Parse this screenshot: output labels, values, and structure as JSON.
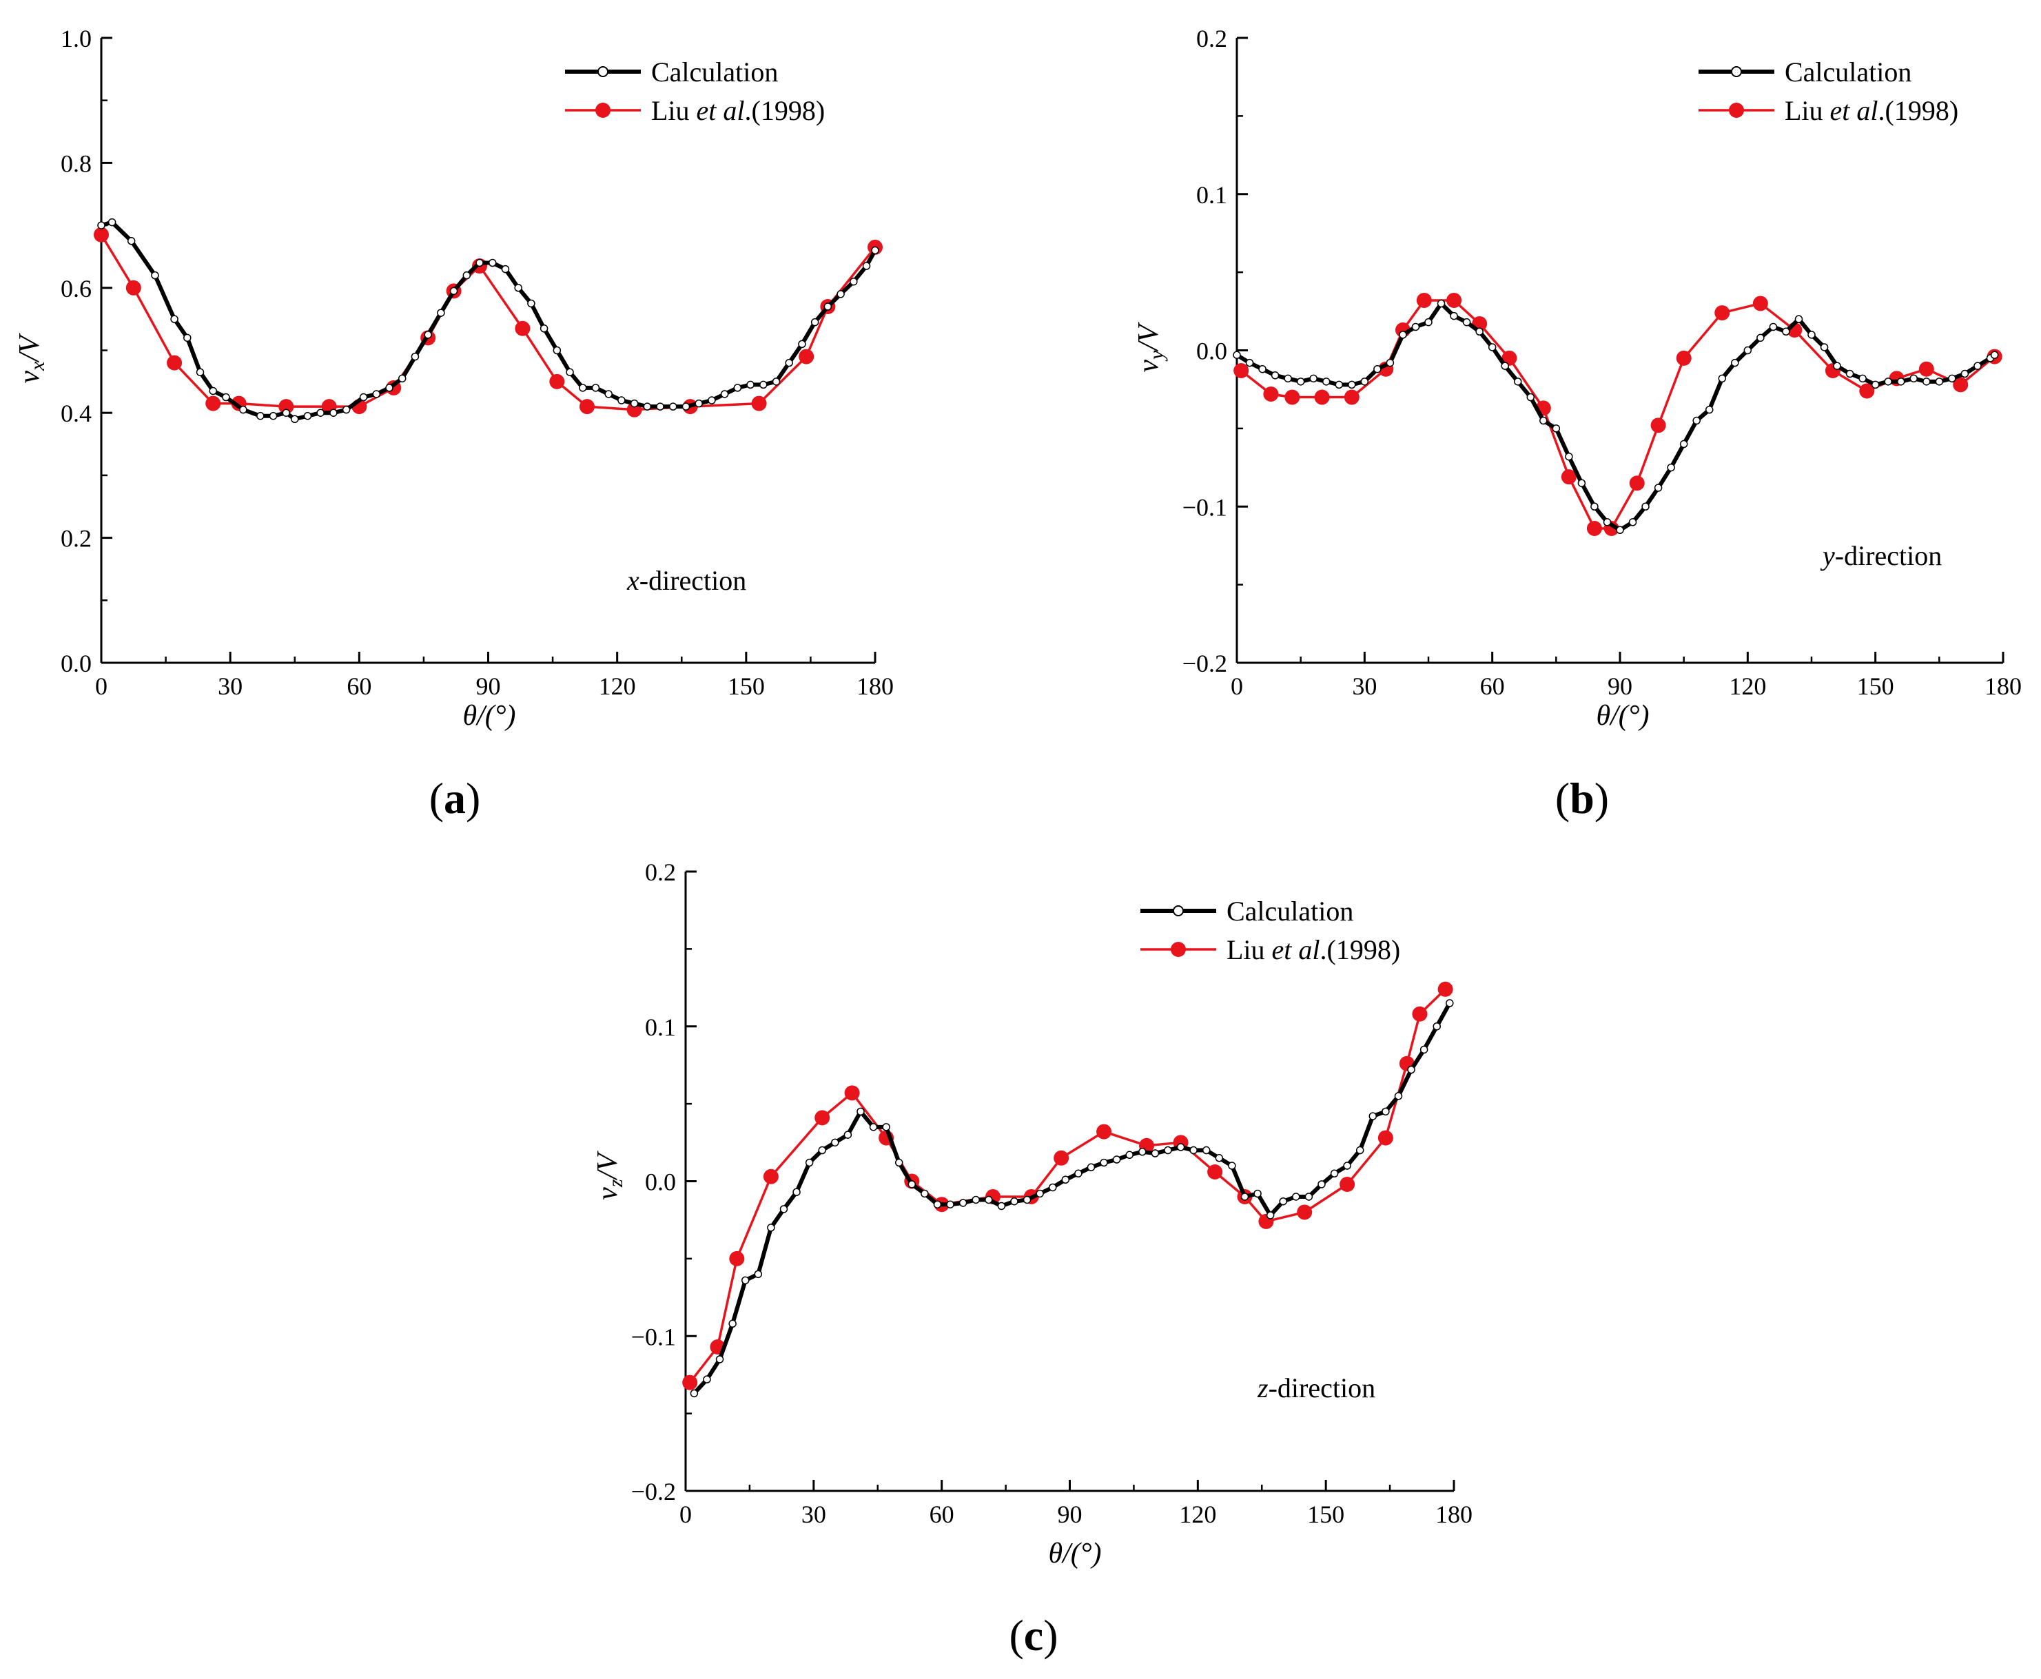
{
  "figure": {
    "panels": [
      {
        "id": "a",
        "label": "a",
        "direction_italic": "x",
        "direction_rest": "-direction",
        "ylabel_var": "v",
        "ylabel_sub": "x",
        "ylabel_rest": "/V"
      },
      {
        "id": "b",
        "label": "b",
        "direction_italic": "y",
        "direction_rest": "-direction",
        "ylabel_var": "v",
        "ylabel_sub": "y",
        "ylabel_rest": "/V"
      },
      {
        "id": "c",
        "label": "c",
        "direction_italic": "z",
        "direction_rest": "-direction",
        "ylabel_var": "v",
        "ylabel_sub": "z",
        "ylabel_rest": "/V"
      }
    ],
    "xlabel": "θ/(°)",
    "legend": {
      "calculation": "Calculation",
      "liu_prefix": "Liu ",
      "liu_italic": "et al",
      "liu_suffix": ".(1998)"
    }
  },
  "colors": {
    "calculation_line": "#000000",
    "calculation_marker_fill": "#ffffff",
    "liu_line": "#e8141c",
    "liu_marker": "#e8141c",
    "axis": "#000000"
  },
  "chart_data": [
    {
      "type": "line",
      "title": "(a)",
      "xlabel": "θ/(°)",
      "ylabel": "v_x/V",
      "xlim": [
        0,
        180
      ],
      "ylim": [
        0.0,
        1.0
      ],
      "xticks": [
        0,
        30,
        60,
        90,
        120,
        150,
        180
      ],
      "yticks": [
        0.0,
        0.2,
        0.4,
        0.6,
        0.8,
        1.0
      ],
      "ytick_labels": [
        "0.0",
        "0.2",
        "0.4",
        "0.6",
        "0.8",
        "1.0"
      ],
      "annotation": "x-direction",
      "legend_position": "top-right",
      "series": [
        {
          "name": "Calculation",
          "x": [
            0,
            2.5,
            7,
            12.5,
            17,
            20,
            23,
            26,
            29,
            33,
            37,
            40,
            43,
            45,
            48,
            51,
            54,
            57,
            61,
            64,
            67,
            70,
            73,
            76,
            79,
            82,
            85,
            88,
            91,
            94,
            97,
            100,
            103,
            106,
            109,
            112,
            115,
            118,
            121,
            124,
            127,
            130,
            133,
            136,
            139,
            142,
            145,
            148,
            151,
            154,
            157,
            160,
            163,
            166,
            169,
            172,
            175,
            178,
            180
          ],
          "y": [
            0.7,
            0.705,
            0.675,
            0.62,
            0.55,
            0.52,
            0.465,
            0.435,
            0.425,
            0.405,
            0.395,
            0.395,
            0.4,
            0.39,
            0.395,
            0.4,
            0.4,
            0.405,
            0.425,
            0.43,
            0.44,
            0.455,
            0.49,
            0.525,
            0.56,
            0.595,
            0.62,
            0.64,
            0.64,
            0.63,
            0.6,
            0.575,
            0.535,
            0.5,
            0.465,
            0.44,
            0.44,
            0.43,
            0.42,
            0.415,
            0.41,
            0.41,
            0.41,
            0.41,
            0.415,
            0.42,
            0.43,
            0.44,
            0.445,
            0.445,
            0.45,
            0.48,
            0.51,
            0.545,
            0.57,
            0.59,
            0.61,
            0.635,
            0.66
          ]
        },
        {
          "name": "Liu et al.(1998)",
          "x": [
            0,
            7.5,
            17,
            26,
            32,
            43,
            53,
            60,
            68,
            76,
            82,
            88,
            98,
            106,
            113,
            124,
            137,
            153,
            164,
            169,
            180
          ],
          "y": [
            0.685,
            0.6,
            0.48,
            0.415,
            0.415,
            0.41,
            0.41,
            0.41,
            0.44,
            0.52,
            0.595,
            0.635,
            0.535,
            0.45,
            0.41,
            0.405,
            0.41,
            0.415,
            0.49,
            0.57,
            0.665
          ]
        }
      ]
    },
    {
      "type": "line",
      "title": "(b)",
      "xlabel": "θ/(°)",
      "ylabel": "v_y/V",
      "xlim": [
        0,
        180
      ],
      "ylim": [
        -0.2,
        0.2
      ],
      "xticks": [
        0,
        30,
        60,
        90,
        120,
        150,
        180
      ],
      "yticks": [
        -0.2,
        -0.1,
        0.0,
        0.1,
        0.2
      ],
      "ytick_labels": [
        "−0.2",
        "−0.1",
        "0.0",
        "0.1",
        "0.2"
      ],
      "annotation": "y-direction",
      "legend_position": "top-right",
      "series": [
        {
          "name": "Calculation",
          "x": [
            0,
            3,
            6,
            9,
            12,
            15,
            18,
            21,
            24,
            27,
            30,
            33,
            36,
            39,
            42,
            45,
            48,
            51,
            54,
            57,
            60,
            63,
            66,
            69,
            72,
            75,
            78,
            81,
            84,
            87,
            90,
            93,
            96,
            99,
            102,
            105,
            108,
            111,
            114,
            117,
            120,
            123,
            126,
            129,
            132,
            135,
            138,
            141,
            144,
            147,
            150,
            153,
            156,
            159,
            162,
            165,
            168,
            171,
            174,
            177,
            178
          ],
          "y": [
            -0.003,
            -0.008,
            -0.012,
            -0.016,
            -0.018,
            -0.02,
            -0.018,
            -0.02,
            -0.022,
            -0.022,
            -0.02,
            -0.012,
            -0.008,
            0.01,
            0.015,
            0.018,
            0.03,
            0.022,
            0.018,
            0.012,
            0.002,
            -0.01,
            -0.02,
            -0.03,
            -0.045,
            -0.05,
            -0.068,
            -0.085,
            -0.1,
            -0.11,
            -0.115,
            -0.11,
            -0.1,
            -0.088,
            -0.075,
            -0.06,
            -0.045,
            -0.038,
            -0.018,
            -0.008,
            0.0,
            0.008,
            0.015,
            0.012,
            0.02,
            0.01,
            0.002,
            -0.01,
            -0.015,
            -0.018,
            -0.022,
            -0.02,
            -0.02,
            -0.018,
            -0.02,
            -0.02,
            -0.018,
            -0.015,
            -0.01,
            -0.005,
            -0.003
          ]
        },
        {
          "name": "Liu et al.(1998)",
          "x": [
            1,
            8,
            13,
            20,
            27,
            35,
            39,
            44,
            51,
            57,
            64,
            72,
            78,
            84,
            88,
            94,
            99,
            105,
            114,
            123,
            131,
            140,
            148,
            155,
            162,
            170,
            178
          ],
          "y": [
            -0.013,
            -0.028,
            -0.03,
            -0.03,
            -0.03,
            -0.012,
            0.013,
            0.032,
            0.032,
            0.017,
            -0.005,
            -0.037,
            -0.081,
            -0.114,
            -0.114,
            -0.085,
            -0.048,
            -0.005,
            0.024,
            0.03,
            0.013,
            -0.013,
            -0.026,
            -0.018,
            -0.012,
            -0.022,
            -0.004
          ]
        }
      ]
    },
    {
      "type": "line",
      "title": "(c)",
      "xlabel": "θ/(°)",
      "ylabel": "v_z/V",
      "xlim": [
        0,
        180
      ],
      "ylim": [
        -0.2,
        0.2
      ],
      "xticks": [
        0,
        30,
        60,
        90,
        120,
        150,
        180
      ],
      "yticks": [
        -0.2,
        -0.1,
        0.0,
        0.1,
        0.2
      ],
      "ytick_labels": [
        "−0.2",
        "−0.1",
        "0.0",
        "0.1",
        "0.2"
      ],
      "annotation": "z-direction",
      "legend_position": "top-right",
      "series": [
        {
          "name": "Calculation",
          "x": [
            2,
            5,
            8,
            11,
            14,
            17,
            20,
            23,
            26,
            29,
            32,
            35,
            38,
            41,
            44,
            47,
            50,
            53,
            56,
            59,
            62,
            65,
            68,
            71,
            74,
            77,
            80,
            83,
            86,
            89,
            92,
            95,
            98,
            101,
            104,
            107,
            110,
            113,
            116,
            119,
            122,
            125,
            128,
            131,
            134,
            137,
            140,
            143,
            146,
            149,
            152,
            155,
            158,
            161,
            164,
            167,
            170,
            173,
            176,
            179
          ],
          "y": [
            -0.137,
            -0.128,
            -0.115,
            -0.092,
            -0.064,
            -0.06,
            -0.03,
            -0.018,
            -0.007,
            0.012,
            0.02,
            0.025,
            0.03,
            0.045,
            0.035,
            0.035,
            0.012,
            -0.002,
            -0.008,
            -0.015,
            -0.015,
            -0.014,
            -0.012,
            -0.012,
            -0.016,
            -0.013,
            -0.012,
            -0.008,
            -0.004,
            0.001,
            0.005,
            0.009,
            0.012,
            0.014,
            0.017,
            0.019,
            0.018,
            0.02,
            0.022,
            0.02,
            0.02,
            0.015,
            0.01,
            -0.01,
            -0.008,
            -0.022,
            -0.013,
            -0.01,
            -0.01,
            -0.002,
            0.005,
            0.01,
            0.02,
            0.042,
            0.045,
            0.055,
            0.072,
            0.085,
            0.1,
            0.115
          ]
        },
        {
          "name": "Liu et al.(1998)",
          "x": [
            1,
            7.5,
            12,
            20,
            32,
            39,
            47,
            53,
            60,
            72,
            81,
            88,
            98,
            108,
            116,
            124,
            131,
            136,
            145,
            155,
            164,
            169,
            172,
            178
          ],
          "y": [
            -0.13,
            -0.107,
            -0.05,
            0.003,
            0.041,
            0.057,
            0.028,
            0.0,
            -0.015,
            -0.01,
            -0.01,
            0.015,
            0.032,
            0.023,
            0.025,
            0.006,
            -0.01,
            -0.026,
            -0.02,
            -0.002,
            0.028,
            0.076,
            0.108,
            0.124
          ]
        }
      ]
    }
  ]
}
